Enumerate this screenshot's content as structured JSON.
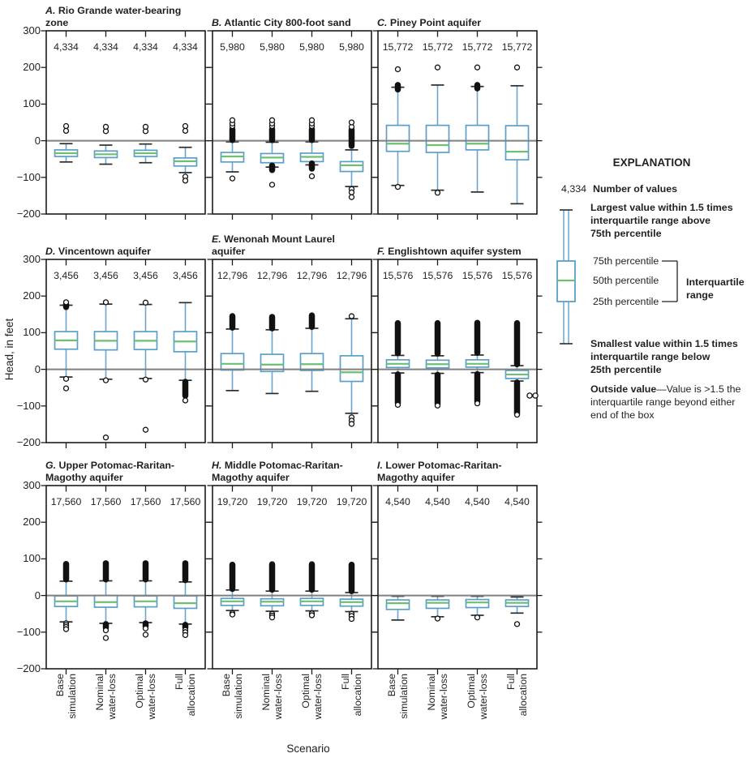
{
  "figure": {
    "ylabel": "Head, in feet",
    "xlabel": "Scenario"
  },
  "axis": {
    "ymin": -200,
    "ymax": 300,
    "yticks": [
      {
        "v": 300,
        "label": "300"
      },
      {
        "v": 200,
        "label": "200"
      },
      {
        "v": 100,
        "label": "100"
      },
      {
        "v": 0,
        "label": "0"
      },
      {
        "v": -100,
        "label": "−100"
      },
      {
        "v": -200,
        "label": "−200"
      }
    ]
  },
  "colors": {
    "box": "#5b9fc9",
    "whisker": "#6aa7cf",
    "median": "#6fbf73",
    "cap": "#2b2b2b",
    "outlier": "#111111",
    "zero_line": "#7f7f7f",
    "axis": "#1c1c1c",
    "text": "#231f20"
  },
  "explanation": {
    "title": "EXPLANATION",
    "sample_count": "4,334",
    "count_label": "Number of values",
    "largest": [
      "Largest value within 1.5 times",
      "interquartile range above",
      "75th percentile"
    ],
    "pct75": "75th percentile",
    "pct50": "50th percentile",
    "pct25": "25th percentile",
    "iqr": [
      "Interquartile",
      "range"
    ],
    "smallest": [
      "Smallest value within 1.5 times",
      "interquartile range below",
      "25th percentile"
    ],
    "outside_term": "Outside value",
    "outside_desc": "—Value is >1.5 the interquartile range beyond either end of the box"
  },
  "chart_data": {
    "type": "box",
    "ylabel": "Head, in feet",
    "xlabel": "Scenario",
    "ylim": [
      -200,
      300
    ],
    "scenarios": [
      "Base simulation",
      "Nominal water-loss",
      "Optimal water-loss",
      "Full allocation"
    ],
    "scenario_tick_lines": [
      [
        "Base",
        "simulation"
      ],
      [
        "Nominal",
        "water-loss"
      ],
      [
        "Optimal",
        "water-loss"
      ],
      [
        "Full",
        "allocation"
      ]
    ],
    "panels": [
      {
        "label": "A.",
        "title": "Rio Grande water-bearing zone",
        "title_lines": [
          "Rio Grande water-bearing",
          "zone"
        ],
        "n": "4,334",
        "boxes": [
          {
            "low": -58,
            "q1": -43,
            "med": -34,
            "q3": -25,
            "high": -8,
            "out_above": [
              27,
              40
            ],
            "out_below": []
          },
          {
            "low": -64,
            "q1": -46,
            "med": -37,
            "q3": -28,
            "high": -12,
            "out_above": [
              26,
              38
            ],
            "out_below": []
          },
          {
            "low": -60,
            "q1": -43,
            "med": -34,
            "q3": -26,
            "high": -9,
            "out_above": [
              26,
              38
            ],
            "out_below": []
          },
          {
            "low": -87,
            "q1": -69,
            "med": -56,
            "q3": -47,
            "high": -18,
            "out_above": [
              27,
              40
            ],
            "out_below": [
              -98,
              -109
            ]
          }
        ]
      },
      {
        "label": "B.",
        "title": "Atlantic City 800-foot sand",
        "title_lines": [
          "Atlantic City 800-foot sand"
        ],
        "n": "5,980",
        "boxes": [
          {
            "low": -85,
            "q1": -58,
            "med": -43,
            "q3": -32,
            "high": -3,
            "cluster_above": [
              2,
              32
            ],
            "out_above": [
              40,
              47,
              56
            ],
            "out_below": [
              -103
            ]
          },
          {
            "low": -72,
            "q1": -60,
            "med": -46,
            "q3": -35,
            "high": -4,
            "cluster_above": [
              2,
              32
            ],
            "cluster_below": [
              -68,
              -80
            ],
            "out_above": [
              40,
              47,
              56
            ],
            "out_below": [
              -120
            ]
          },
          {
            "low": -66,
            "q1": -57,
            "med": -44,
            "q3": -34,
            "high": -3,
            "cluster_above": [
              2,
              32
            ],
            "cluster_below": [
              -62,
              -76
            ],
            "out_above": [
              40,
              47,
              56
            ],
            "out_below": [
              -97
            ]
          },
          {
            "low": -125,
            "q1": -84,
            "med": -67,
            "q3": -57,
            "high": -25,
            "cluster_above": [
              -14,
              30
            ],
            "out_above": [
              38,
              50
            ],
            "out_below": [
              -132,
              -141,
              -154
            ]
          }
        ]
      },
      {
        "label": "C.",
        "title": "Piney Point aquifer",
        "title_lines": [
          "Piney Point aquifer"
        ],
        "n": "15,772",
        "boxes": [
          {
            "low": -122,
            "q1": -29,
            "med": -8,
            "q3": 42,
            "high": 146,
            "cluster_above": [
              140,
              152
            ],
            "out_above": [
              195
            ],
            "out_below": [
              -126
            ]
          },
          {
            "low": -135,
            "q1": -32,
            "med": -12,
            "q3": 42,
            "high": 152,
            "out_above": [
              200
            ],
            "out_below": [
              -142
            ]
          },
          {
            "low": -140,
            "q1": -25,
            "med": -8,
            "q3": 42,
            "high": 148,
            "cluster_above": [
              143,
              152
            ],
            "out_above": [
              200
            ],
            "out_below": []
          },
          {
            "low": -172,
            "q1": -52,
            "med": -30,
            "q3": 41,
            "high": 150,
            "out_above": [
              200
            ],
            "out_below": []
          }
        ]
      },
      {
        "label": "D.",
        "title": "Vincentown aquifer",
        "title_lines": [
          "Vincentown aquifer"
        ],
        "n": "3,456",
        "boxes": [
          {
            "low": -21,
            "q1": 55,
            "med": 79,
            "q3": 103,
            "high": 175,
            "cluster_above": [
              170,
              178
            ],
            "out_above": [
              183
            ],
            "out_below": [
              -26,
              -52
            ]
          },
          {
            "low": -27,
            "q1": 53,
            "med": 78,
            "q3": 103,
            "high": 178,
            "out_above": [
              183
            ],
            "out_below": [
              -30,
              -186
            ]
          },
          {
            "low": -25,
            "q1": 54,
            "med": 78,
            "q3": 103,
            "high": 177,
            "out_above": [
              182
            ],
            "out_below": [
              -28,
              -165
            ]
          },
          {
            "low": -30,
            "q1": 48,
            "med": 76,
            "q3": 103,
            "high": 182,
            "cluster_below": [
              -34,
              -72
            ],
            "out_above": [],
            "out_below": [
              -85
            ]
          }
        ]
      },
      {
        "label": "E.",
        "title": "Wenonah Mount Laurel aquifer",
        "title_lines": [
          "Wenonah Mount Laurel",
          "aquifer"
        ],
        "n": "12,796",
        "boxes": [
          {
            "low": -58,
            "q1": -2,
            "med": 15,
            "q3": 43,
            "high": 110,
            "cluster_above": [
              114,
              145
            ],
            "out_above": [],
            "out_below": []
          },
          {
            "low": -66,
            "q1": -6,
            "med": 13,
            "q3": 41,
            "high": 108,
            "cluster_above": [
              112,
              143
            ],
            "out_above": [],
            "out_below": []
          },
          {
            "low": -60,
            "q1": -3,
            "med": 14,
            "q3": 43,
            "high": 112,
            "cluster_above": [
              116,
              147
            ],
            "out_above": [],
            "out_below": []
          },
          {
            "low": -120,
            "q1": -33,
            "med": -8,
            "q3": 37,
            "high": 138,
            "out_above": [
              145
            ],
            "out_below": [
              -131,
              -140,
              -149
            ]
          }
        ]
      },
      {
        "label": "F.",
        "title": "Englishtown aquifer system",
        "title_lines": [
          "Englishtown aquifer system"
        ],
        "n": "15,576",
        "boxes": [
          {
            "low": -10,
            "q1": 5,
            "med": 15,
            "q3": 26,
            "high": 38,
            "cluster_above": [
              44,
              126
            ],
            "cluster_below": [
              -14,
              -92
            ],
            "out_above": [],
            "out_below": [
              -97
            ]
          },
          {
            "low": -11,
            "q1": 4,
            "med": 14,
            "q3": 25,
            "high": 37,
            "cluster_above": [
              43,
              126
            ],
            "cluster_below": [
              -15,
              -94
            ],
            "out_above": [],
            "out_below": [
              -99
            ]
          },
          {
            "low": -9,
            "q1": 6,
            "med": 15,
            "q3": 26,
            "high": 39,
            "cluster_above": [
              45,
              127
            ],
            "cluster_below": [
              -13,
              -88
            ],
            "out_above": [],
            "out_below": [
              -93
            ]
          },
          {
            "low": -32,
            "q1": -25,
            "med": -14,
            "q3": -3,
            "high": 10,
            "cluster_above": [
              14,
              126
            ],
            "cluster_below": [
              -36,
              -120
            ],
            "out_above": [],
            "out_below": [
              -124
            ]
          }
        ]
      },
      {
        "label": "G.",
        "title": "Upper Potomac-Raritan-Magothy aquifer",
        "title_lines": [
          "Upper Potomac-Raritan-",
          "Magothy aquifer"
        ],
        "n": "17,560",
        "boxes": [
          {
            "low": -72,
            "q1": -30,
            "med": -16,
            "q3": -1,
            "high": 39,
            "cluster_above": [
              44,
              86
            ],
            "out_above": [],
            "out_below": [
              -76,
              -81,
              -86,
              -92
            ]
          },
          {
            "low": -76,
            "q1": -32,
            "med": -18,
            "q3": 0,
            "high": 40,
            "cluster_above": [
              44,
              88
            ],
            "cluster_below": [
              -78,
              -88
            ],
            "out_above": [],
            "out_below": [
              -95,
              -116
            ]
          },
          {
            "low": -74,
            "q1": -31,
            "med": -16,
            "q3": -1,
            "high": 40,
            "cluster_above": [
              44,
              88
            ],
            "cluster_below": [
              -76,
              -84
            ],
            "out_above": [],
            "out_below": [
              -90,
              -107
            ]
          },
          {
            "low": -78,
            "q1": -35,
            "med": -21,
            "q3": -1,
            "high": 37,
            "cluster_above": [
              42,
              88
            ],
            "cluster_below": [
              -80,
              -88
            ],
            "out_above": [],
            "out_below": [
              -94,
              -100,
              -108
            ]
          }
        ]
      },
      {
        "label": "H.",
        "title": "Middle Potomac-Raritan-Magothy aquifer",
        "title_lines": [
          "Middle Potomac-Raritan-",
          "Magothy aquifer"
        ],
        "n": "19,720",
        "boxes": [
          {
            "low": -41,
            "q1": -27,
            "med": -16,
            "q3": -8,
            "high": 15,
            "cluster_above": [
              18,
              84
            ],
            "out_above": [],
            "out_below": [
              -48,
              -52
            ]
          },
          {
            "low": -43,
            "q1": -28,
            "med": -17,
            "q3": -9,
            "high": 12,
            "cluster_above": [
              16,
              85
            ],
            "out_above": [],
            "out_below": [
              -50,
              -55,
              -60
            ]
          },
          {
            "low": -42,
            "q1": -27,
            "med": -16,
            "q3": -8,
            "high": 12,
            "cluster_above": [
              16,
              85
            ],
            "out_above": [],
            "out_below": [
              -49,
              -54
            ]
          },
          {
            "low": -44,
            "q1": -29,
            "med": -18,
            "q3": -10,
            "high": 8,
            "cluster_above": [
              12,
              84
            ],
            "out_above": [],
            "out_below": [
              -50,
              -56,
              -64
            ]
          }
        ]
      },
      {
        "label": "I.",
        "title": "Lower Potomac-Raritan-Magothy aquifer",
        "title_lines": [
          "Lower Potomac-Raritan-",
          "Magothy aquifer"
        ],
        "n": "4,540",
        "boxes": [
          {
            "low": -67,
            "q1": -38,
            "med": -21,
            "q3": -12,
            "high": -2,
            "out_above": [],
            "out_below": []
          },
          {
            "low": -58,
            "q1": -35,
            "med": -20,
            "q3": -12,
            "high": -2,
            "out_above": [],
            "out_below": [
              -63
            ]
          },
          {
            "low": -54,
            "q1": -33,
            "med": -19,
            "q3": -11,
            "high": -2,
            "out_above": [],
            "out_below": [
              -60
            ]
          },
          {
            "low": -48,
            "q1": -30,
            "med": -20,
            "q3": -12,
            "high": -4,
            "out_above": [],
            "out_below": [
              -78
            ]
          }
        ]
      }
    ]
  }
}
